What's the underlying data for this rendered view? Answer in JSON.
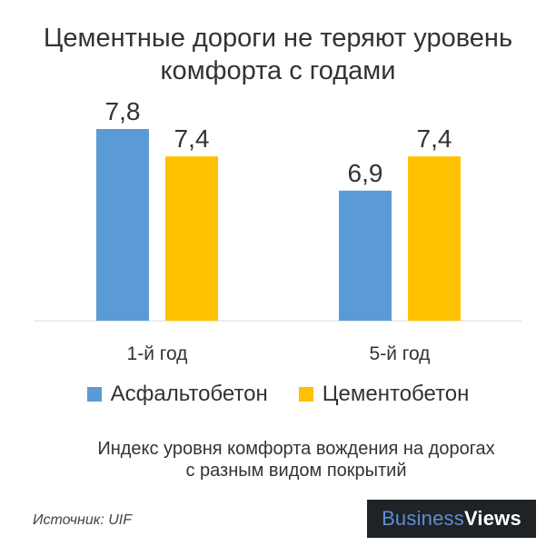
{
  "title": {
    "line1": "Цементные дороги не теряют уровень",
    "line2": "комфорта с годами"
  },
  "chart_data": {
    "type": "bar",
    "categories": [
      "1-й год",
      "5-й год"
    ],
    "series": [
      {
        "name": "Асфальтобетон",
        "values": [
          7.8,
          6.9
        ],
        "labels": [
          "7,8",
          "6,9"
        ],
        "color": "#5b9bd5"
      },
      {
        "name": "Цементобетон",
        "values": [
          7.4,
          7.4
        ],
        "labels": [
          "7,4",
          "7,4"
        ],
        "color": "#ffc000"
      }
    ],
    "ylim": [
      5.0,
      8.0
    ],
    "grid": false,
    "legend_position": "bottom"
  },
  "caption": {
    "line1": "Индекс уровня комфорта вождения на дорогах",
    "line2": "с разным видом покрытий"
  },
  "source": "Источник: UIF",
  "brand": {
    "part1": "Business",
    "part2": "Views"
  }
}
